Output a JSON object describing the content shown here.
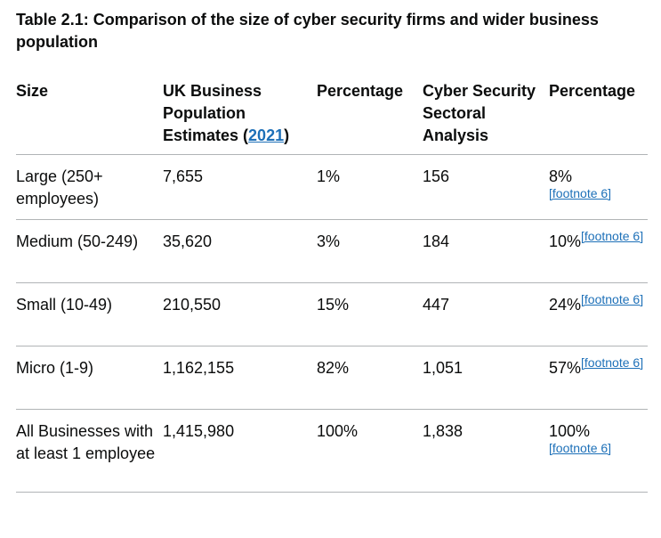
{
  "caption": "Table 2.1: Comparison of the size of cyber security firms and wider business population",
  "headers": {
    "size": "Size",
    "uk_pop_prefix": "UK Business Population Estimates (",
    "uk_pop_link": "2021",
    "uk_pop_suffix": ")",
    "percentage_1": "Percentage",
    "cyber": "Cyber Security Sectoral Analysis",
    "percentage_2": "Percentage"
  },
  "rows": [
    {
      "size": "Large (250+ employees)",
      "uk": "7,655",
      "pct": "1%",
      "cyber": "156",
      "cyber_pct": "8%",
      "footnote": "[footnote 6]"
    },
    {
      "size": "Medium (50-249)",
      "uk": "35,620",
      "pct": "3%",
      "cyber": "184",
      "cyber_pct": "10%",
      "footnote": "[footnote 6]"
    },
    {
      "size": "Small (10-49)",
      "uk": "210,550",
      "pct": "15%",
      "cyber": "447",
      "cyber_pct": "24%",
      "footnote": "[footnote 6]"
    },
    {
      "size": "Micro (1-9)",
      "uk": "1,162,155",
      "pct": "82%",
      "cyber": "1,051",
      "cyber_pct": "57%",
      "footnote": "[footnote 6]"
    },
    {
      "size": "All Businesses with at least 1 employee",
      "uk": "1,415,980",
      "pct": "100%",
      "cyber": "1,838",
      "cyber_pct": "100%",
      "footnote": "[footnote 6]"
    }
  ],
  "colors": {
    "link": "#1d70b8",
    "text": "#0b0c0c",
    "rule": "#b1b4b6"
  }
}
